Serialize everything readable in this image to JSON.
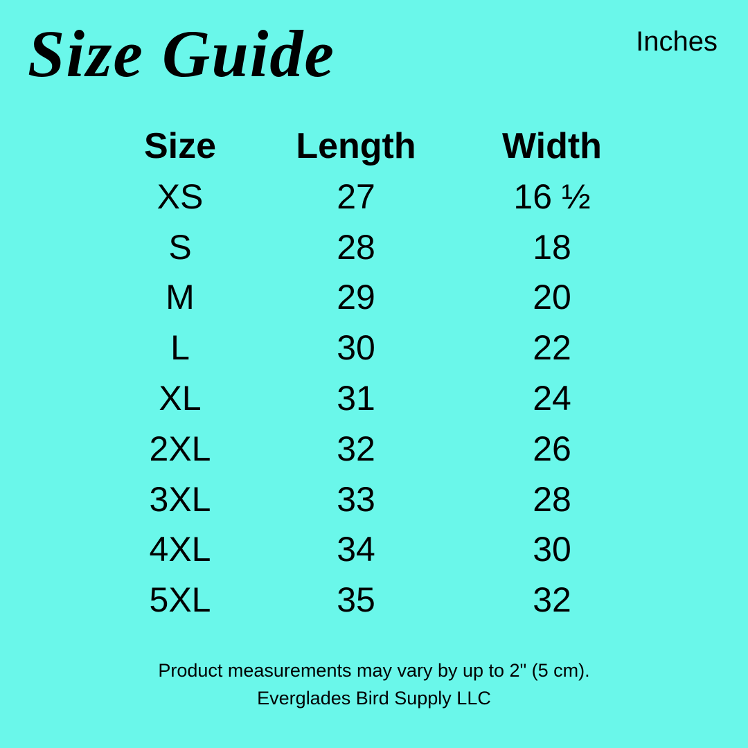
{
  "title": "Size Guide",
  "unit": "Inches",
  "colors": {
    "background": "#6af7ea",
    "text": "#000000"
  },
  "table": {
    "headers": [
      "Size",
      "Length",
      "Width"
    ],
    "rows": [
      [
        "XS",
        "27",
        "16 ½"
      ],
      [
        "S",
        "28",
        "18"
      ],
      [
        "M",
        "29",
        "20"
      ],
      [
        "L",
        "30",
        "22"
      ],
      [
        "XL",
        "31",
        "24"
      ],
      [
        "2XL",
        "32",
        "26"
      ],
      [
        "3XL",
        "33",
        "28"
      ],
      [
        "4XL",
        "34",
        "30"
      ],
      [
        "5XL",
        "35",
        "32"
      ]
    ]
  },
  "footer": {
    "note": "Product measurements may vary by up to 2\" (5 cm).",
    "company": "Everglades Bird Supply LLC"
  }
}
